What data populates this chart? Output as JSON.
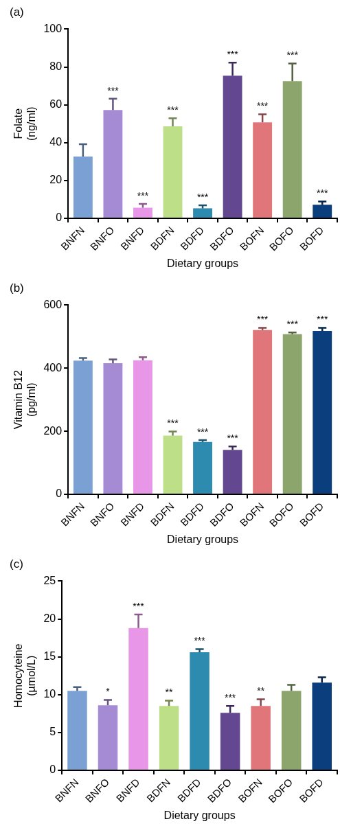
{
  "chart_data": [
    {
      "type": "bar",
      "title": "(a)",
      "xlabel": "Dietary groups",
      "ylabel": "Folate\n(ng/ml)",
      "categories": [
        "BNFN",
        "BNFO",
        "BNFD",
        "BDFN",
        "BDFD",
        "BDFO",
        "BOFN",
        "BOFO",
        "BOFD"
      ],
      "values": [
        32.7,
        57.2,
        5.6,
        48.6,
        5.3,
        75.4,
        50.7,
        72.5,
        7.2
      ],
      "errors": [
        6.5,
        6,
        2,
        4.3,
        1.6,
        6.9,
        4.3,
        9.3,
        1.7
      ],
      "value_labels": [
        null,
        "***",
        "***",
        "***",
        "***",
        "***",
        "***",
        "***",
        "***"
      ],
      "colors": [
        "#7ba1d4",
        "#a58bd3",
        "#e897e8",
        "#bcdf88",
        "#2e8bb0",
        "#634791",
        "#e0757a",
        "#8ba56c",
        "#0a3e7d"
      ],
      "ylim": [
        0,
        100
      ],
      "yticks": [
        0,
        20,
        40,
        60,
        80,
        100
      ]
    },
    {
      "type": "bar",
      "title": "(b)",
      "xlabel": "Dietary groups",
      "ylabel": "Vitamin B12\n(pg/ml)",
      "categories": [
        "BNFN",
        "BNFO",
        "BNFD",
        "BDFN",
        "BDFD",
        "BDFO",
        "BOFN",
        "BOFO",
        "BOFD"
      ],
      "values": [
        424,
        416,
        425,
        186,
        166,
        141,
        521,
        508,
        518
      ],
      "errors": [
        8,
        12,
        10,
        13,
        6,
        11,
        7,
        5,
        10
      ],
      "value_labels": [
        null,
        null,
        null,
        "***",
        "***",
        "***",
        "***",
        "***",
        "***"
      ],
      "colors": [
        "#7ba1d4",
        "#a58bd3",
        "#e897e8",
        "#bcdf88",
        "#2e8bb0",
        "#634791",
        "#e0757a",
        "#8ba56c",
        "#0a3e7d"
      ],
      "ylim": [
        0,
        600
      ],
      "yticks": [
        0,
        200,
        400,
        600
      ]
    },
    {
      "type": "bar",
      "title": "(c)",
      "xlabel": "Dietary groups",
      "ylabel": "Homocyteine\n(µmol/L)",
      "categories": [
        "BNFN",
        "BNFO",
        "BNFD",
        "BDFN",
        "BDFD",
        "BDFO",
        "BOFN",
        "BOFO",
        "BOFD"
      ],
      "values": [
        10.5,
        8.6,
        18.8,
        8.5,
        15.6,
        7.6,
        8.5,
        10.5,
        11.6
      ],
      "errors": [
        0.5,
        0.7,
        1.8,
        0.7,
        0.4,
        0.9,
        0.9,
        0.8,
        0.7
      ],
      "value_labels": [
        null,
        "*",
        "***",
        "**",
        "***",
        "***",
        "**",
        null,
        null
      ],
      "colors": [
        "#7ba1d4",
        "#a58bd3",
        "#e897e8",
        "#bcdf88",
        "#2e8bb0",
        "#634791",
        "#e0757a",
        "#8ba56c",
        "#0a3e7d"
      ],
      "ylim": [
        0,
        25
      ],
      "yticks": [
        0,
        5,
        10,
        15,
        20,
        25
      ]
    }
  ]
}
